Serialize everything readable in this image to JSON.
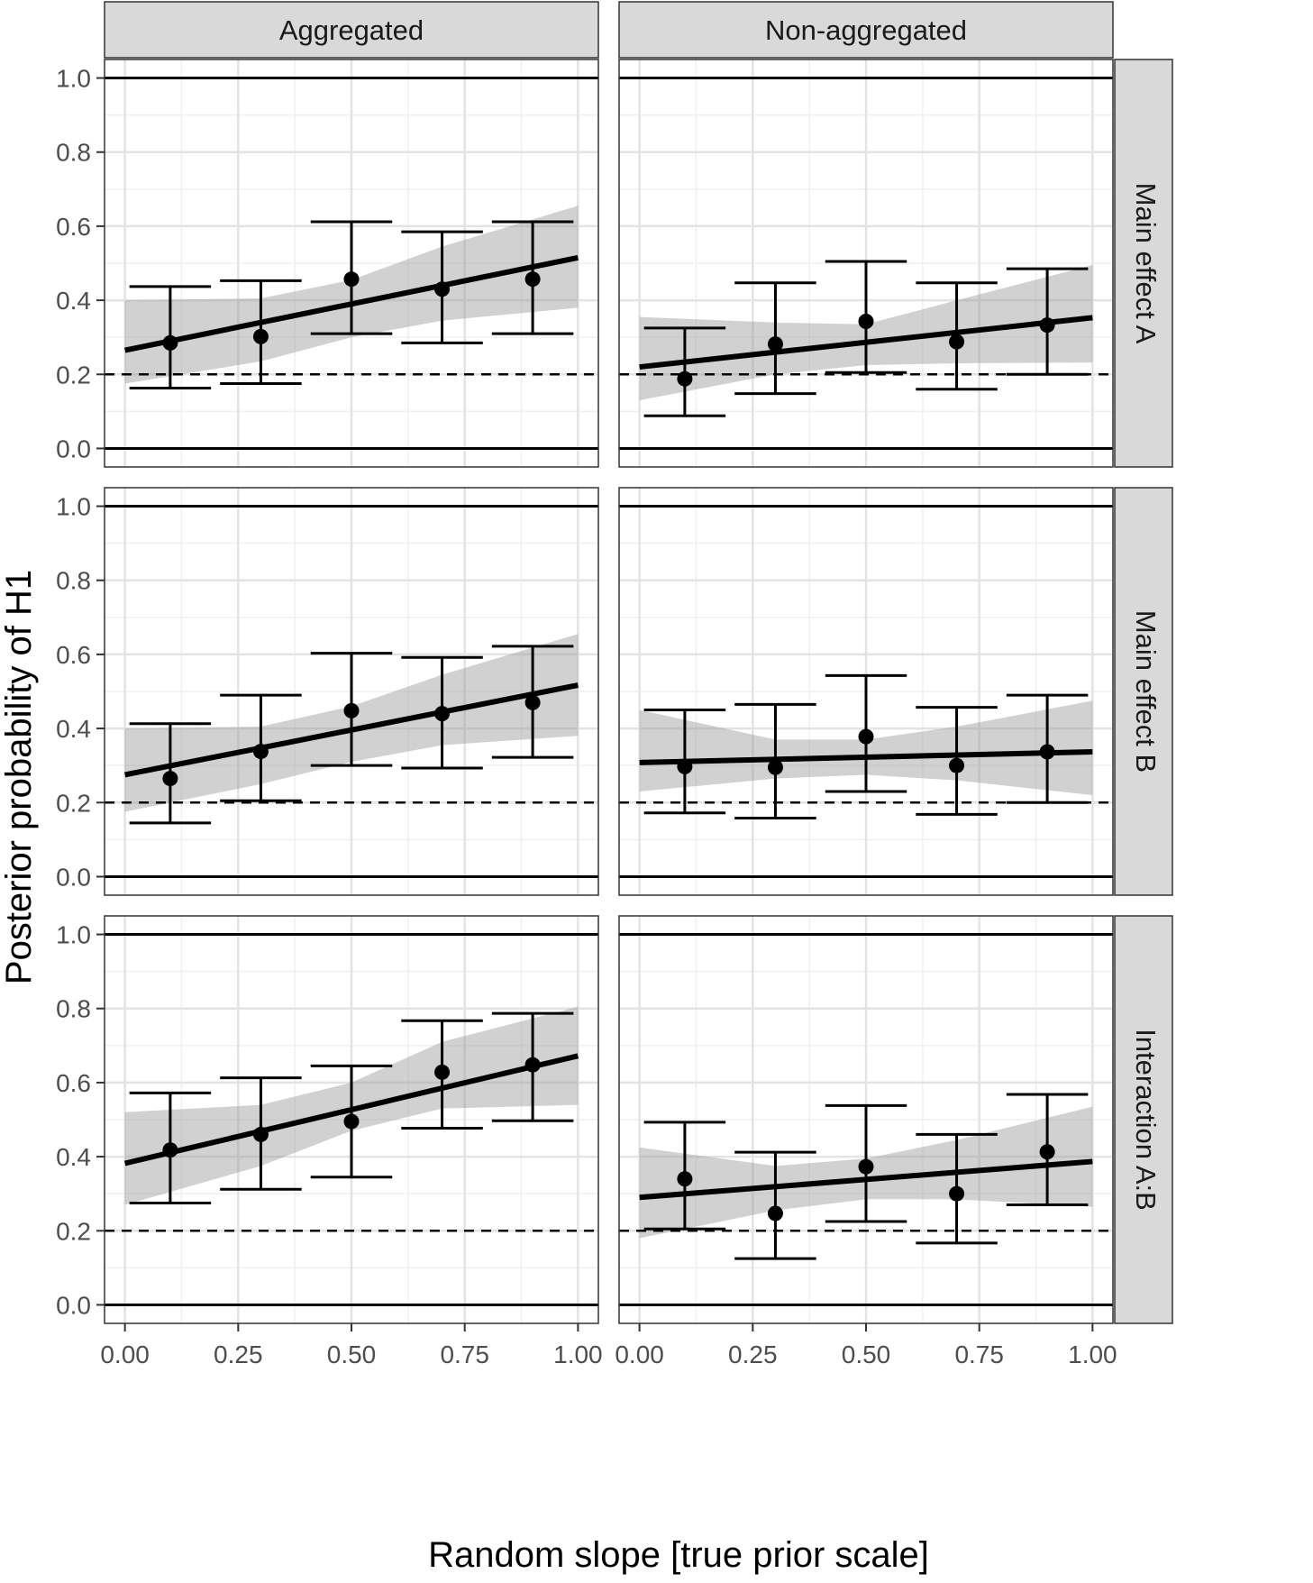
{
  "chart_data": {
    "type": "scatter",
    "title": "",
    "xlabel": "Random slope [true prior scale]",
    "ylabel": "Posterior probability of H1",
    "xlim": [
      -0.045,
      1.045
    ],
    "ylim": [
      -0.05,
      1.05
    ],
    "x_ticks": [
      0,
      0.25,
      0.5,
      0.75,
      1
    ],
    "x_tick_labels": [
      "0.00",
      "0.25",
      "0.50",
      "0.75",
      "1.00"
    ],
    "y_ticks": [
      0,
      0.2,
      0.4,
      0.6,
      0.8,
      1
    ],
    "y_tick_labels": [
      "0.0",
      "0.2",
      "0.4",
      "0.6",
      "0.8",
      "1.0"
    ],
    "column_facets": [
      "Aggregated",
      "Non-aggregated"
    ],
    "row_facets": [
      "Main effect A",
      "Main effect B",
      "Interaction A:B"
    ],
    "reference_lines": {
      "solid": [
        0,
        1
      ],
      "dashed": [
        0.2
      ]
    },
    "x": [
      0.1,
      0.3,
      0.5,
      0.7,
      0.9
    ],
    "panels": [
      {
        "row": "Main effect A",
        "col": "Aggregated",
        "points": [
          0.285,
          0.302,
          0.457,
          0.43,
          0.457
        ],
        "lower": [
          0.163,
          0.175,
          0.31,
          0.285,
          0.31
        ],
        "upper": [
          0.437,
          0.453,
          0.612,
          0.585,
          0.612
        ],
        "fit": [
          0.265,
          0.515
        ],
        "band_lower": [
          0.175,
          0.235,
          0.3,
          0.345,
          0.38
        ],
        "band_upper": [
          0.4,
          0.405,
          0.455,
          0.545,
          0.655
        ]
      },
      {
        "row": "Main effect A",
        "col": "Non-aggregated",
        "points": [
          0.188,
          0.282,
          0.343,
          0.288,
          0.333
        ],
        "lower": [
          0.088,
          0.148,
          0.205,
          0.16,
          0.2
        ],
        "upper": [
          0.325,
          0.447,
          0.505,
          0.447,
          0.485
        ],
        "fit": [
          0.22,
          0.353
        ],
        "band_lower": [
          0.13,
          0.2,
          0.225,
          0.23,
          0.232
        ],
        "band_upper": [
          0.355,
          0.34,
          0.335,
          0.4,
          0.495
        ]
      },
      {
        "row": "Main effect B",
        "col": "Aggregated",
        "points": [
          0.265,
          0.338,
          0.448,
          0.44,
          0.47
        ],
        "lower": [
          0.145,
          0.205,
          0.3,
          0.293,
          0.322
        ],
        "upper": [
          0.413,
          0.49,
          0.603,
          0.592,
          0.622
        ],
        "fit": [
          0.275,
          0.517
        ],
        "band_lower": [
          0.175,
          0.25,
          0.31,
          0.355,
          0.38
        ],
        "band_upper": [
          0.4,
          0.405,
          0.46,
          0.545,
          0.655
        ]
      },
      {
        "row": "Main effect B",
        "col": "Non-aggregated",
        "points": [
          0.297,
          0.295,
          0.378,
          0.3,
          0.337
        ],
        "lower": [
          0.172,
          0.158,
          0.23,
          0.168,
          0.2
        ],
        "upper": [
          0.45,
          0.465,
          0.543,
          0.457,
          0.49
        ],
        "fit": [
          0.308,
          0.337
        ],
        "band_lower": [
          0.23,
          0.265,
          0.275,
          0.26,
          0.22
        ],
        "band_upper": [
          0.45,
          0.37,
          0.37,
          0.405,
          0.475
        ]
      },
      {
        "row": "Interaction A:B",
        "col": "Aggregated",
        "points": [
          0.418,
          0.46,
          0.495,
          0.628,
          0.648
        ],
        "lower": [
          0.275,
          0.312,
          0.345,
          0.477,
          0.497
        ],
        "upper": [
          0.572,
          0.613,
          0.645,
          0.767,
          0.787
        ],
        "fit": [
          0.382,
          0.672
        ],
        "band_lower": [
          0.27,
          0.375,
          0.47,
          0.53,
          0.54
        ],
        "band_upper": [
          0.52,
          0.54,
          0.6,
          0.71,
          0.805
        ]
      },
      {
        "row": "Interaction A:B",
        "col": "Non-aggregated",
        "points": [
          0.34,
          0.247,
          0.373,
          0.3,
          0.413
        ],
        "lower": [
          0.205,
          0.125,
          0.225,
          0.167,
          0.27
        ],
        "upper": [
          0.493,
          0.412,
          0.538,
          0.46,
          0.568
        ],
        "fit": [
          0.29,
          0.387
        ],
        "band_lower": [
          0.18,
          0.255,
          0.285,
          0.285,
          0.265
        ],
        "band_upper": [
          0.425,
          0.375,
          0.395,
          0.445,
          0.535
        ]
      }
    ]
  }
}
